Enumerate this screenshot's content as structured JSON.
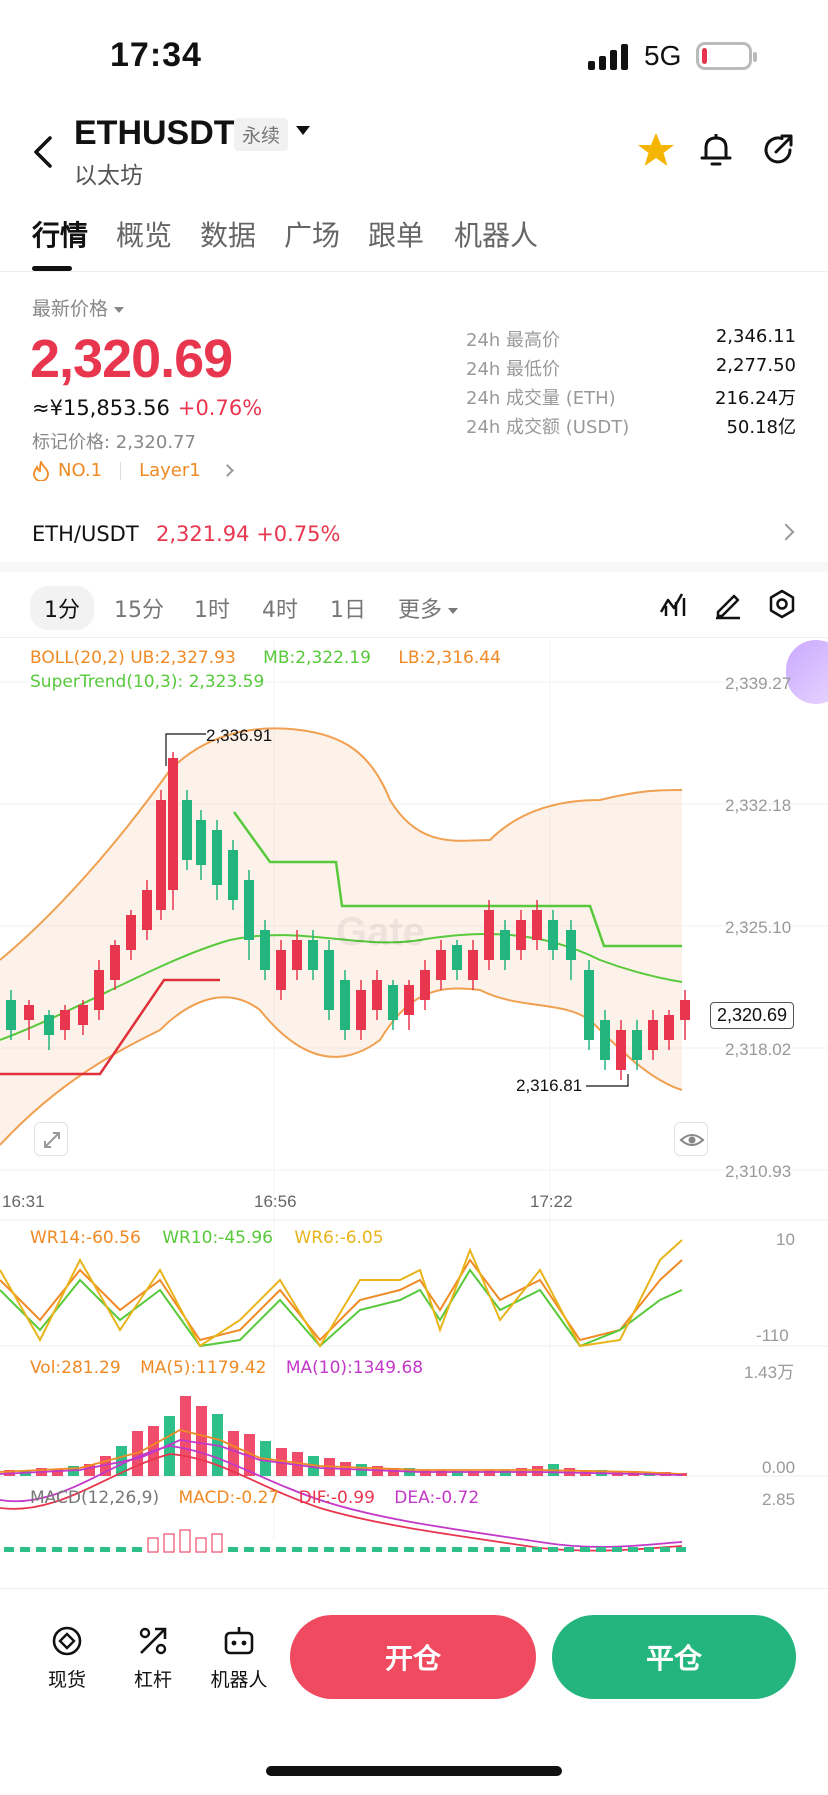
{
  "status": {
    "time": "17:34",
    "network": "5G"
  },
  "header": {
    "pair": "ETHUSDT",
    "contract_tag": "永续",
    "subtitle": "以太坊",
    "icons": [
      "back-icon",
      "star-icon",
      "bell-icon",
      "share-icon"
    ],
    "star_color": "#f5b400"
  },
  "tabs": [
    "行情",
    "概览",
    "数据",
    "广场",
    "跟单",
    "机器人"
  ],
  "price": {
    "latest_label": "最新价格",
    "last": "2,320.69",
    "cny": "≈¥15,853.56",
    "change": "+0.76%",
    "mark": "标记价格: 2,320.77",
    "rank": "NO.1",
    "sector": "Layer1",
    "up_color": "#e8364f",
    "down_color": "#24b47e"
  },
  "stats": [
    {
      "k": "24h 最高价",
      "v": "2,346.11"
    },
    {
      "k": "24h 最低价",
      "v": "2,277.50"
    },
    {
      "k": "24h 成交量 (ETH)",
      "v": "216.24万"
    },
    {
      "k": "24h 成交额 (USDT)",
      "v": "50.18亿"
    }
  ],
  "ticker": {
    "pair": "ETH/USDT",
    "price_change": "2,321.94 +0.75%"
  },
  "intervals": {
    "items": [
      "1分",
      "15分",
      "1时",
      "4时",
      "1日"
    ],
    "more": "更多",
    "active": "1分"
  },
  "chart": {
    "boll": {
      "label": "BOLL(20,2)",
      "ub": "UB:2,327.93",
      "mb": "MB:2,322.19",
      "lb": "LB:2,316.44"
    },
    "supertrend": "SuperTrend(10,3): 2,323.59",
    "y_ticks": [
      "2,339.27",
      "2,332.18",
      "2,325.10",
      "2,318.02",
      "2,310.93"
    ],
    "x_ticks": [
      "16:31",
      "16:56",
      "17:22"
    ],
    "last_price": "2,320.69",
    "high_mark": "2,336.91",
    "low_mark": "2,316.81",
    "watermark": "Gate",
    "wr": {
      "wr14": "WR14:-60.56",
      "wr10": "WR10:-45.96",
      "wr6": "WR6:-6.05",
      "top": "10",
      "bottom": "-110"
    },
    "vol": {
      "vol": "Vol:281.29",
      "ma5": "MA(5):1179.42",
      "ma10": "MA(10):1349.68",
      "top": "1.43万",
      "bottom": "0.00"
    },
    "macd": {
      "label": "MACD(12,26,9)",
      "macd": "MACD:-0.27",
      "dif": "DIF:-0.99",
      "dea": "DEA:-0.72",
      "top": "2.85"
    }
  },
  "bottom": {
    "spot": "现货",
    "leverage": "杠杆",
    "bot": "机器人",
    "open": "开仓",
    "close": "平仓"
  }
}
